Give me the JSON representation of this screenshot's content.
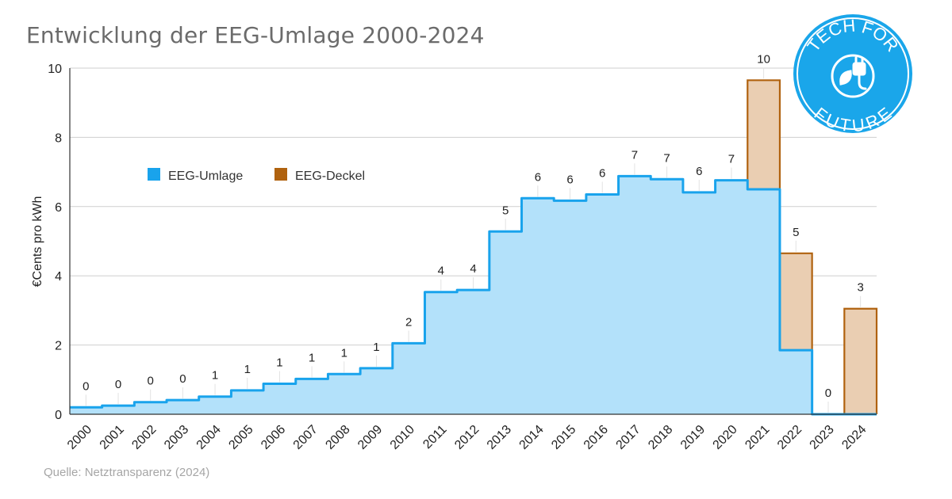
{
  "title": "Entwicklung der EEG-Umlage 2000-2024",
  "source": "Quelle: Netztransparenz (2024)",
  "logo": {
    "icon": "plug-leaf-icon",
    "text_top": "TECH FOR",
    "text_bottom": "FUTURE",
    "color": "#1aa6ea"
  },
  "colors": {
    "umlage_fill": "#b3e1fa",
    "umlage_line": "#19a3ec",
    "deckel_fill": "#eaceb2",
    "deckel_line": "#b0620f"
  },
  "chart_data": {
    "type": "area",
    "step": true,
    "title": "Entwicklung der EEG-Umlage 2000-2024",
    "xlabel": "",
    "ylabel": "€Cents pro kWh",
    "ylim": [
      0,
      10
    ],
    "yticks": [
      0,
      2,
      4,
      6,
      8,
      10
    ],
    "grid": true,
    "legend": "upper-left",
    "categories": [
      "2000",
      "2001",
      "2002",
      "2003",
      "2004",
      "2005",
      "2006",
      "2007",
      "2008",
      "2009",
      "2010",
      "2011",
      "2012",
      "2013",
      "2014",
      "2015",
      "2016",
      "2017",
      "2018",
      "2019",
      "2020",
      "2021",
      "2022",
      "2023",
      "2024"
    ],
    "series": [
      {
        "name": "EEG-Umlage",
        "values": [
          0.2,
          0.25,
          0.35,
          0.41,
          0.51,
          0.69,
          0.88,
          1.02,
          1.16,
          1.33,
          2.05,
          3.53,
          3.59,
          5.28,
          6.24,
          6.17,
          6.35,
          6.88,
          6.79,
          6.41,
          6.76,
          6.5,
          1.85,
          0,
          0
        ]
      },
      {
        "name": "EEG-Deckel",
        "values": [
          null,
          null,
          null,
          null,
          null,
          null,
          null,
          null,
          null,
          null,
          null,
          null,
          null,
          null,
          null,
          null,
          null,
          null,
          null,
          null,
          null,
          9.65,
          4.65,
          null,
          3.05
        ]
      }
    ],
    "data_labels": [
      "0",
      "0",
      "0",
      "0",
      "1",
      "1",
      "1",
      "1",
      "1",
      "1",
      "2",
      "4",
      "4",
      "5",
      "6",
      "6",
      "6",
      "7",
      "7",
      "6",
      "7",
      "10",
      "5",
      "0",
      "3"
    ]
  }
}
